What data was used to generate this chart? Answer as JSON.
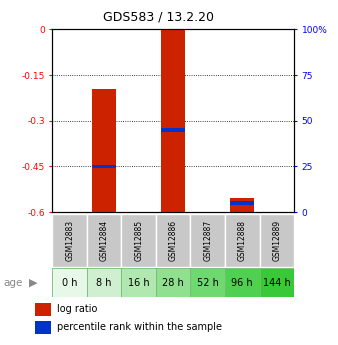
{
  "title": "GDS583 / 13.2.20",
  "samples": [
    "GSM12883",
    "GSM12884",
    "GSM12885",
    "GSM12886",
    "GSM12887",
    "GSM12888",
    "GSM12889"
  ],
  "age_labels": [
    "0 h",
    "8 h",
    "16 h",
    "28 h",
    "52 h",
    "96 h",
    "144 h"
  ],
  "ylim_left": [
    -0.6,
    0.0
  ],
  "yticks_left": [
    0.0,
    -0.15,
    -0.3,
    -0.45,
    -0.6
  ],
  "ytick_labels_left": [
    "0",
    "-0.15",
    "-0.3",
    "-0.45",
    "-0.6"
  ],
  "ylim_right": [
    0,
    100
  ],
  "yticks_right": [
    0,
    25,
    50,
    75,
    100
  ],
  "ytick_labels_right": [
    "0",
    "25",
    "50",
    "75",
    "100%"
  ],
  "log_ratio_top": [
    0.0,
    -0.195,
    0.0,
    0.0,
    0.0,
    -0.555,
    0.0
  ],
  "log_ratio_bottom": [
    0.0,
    -0.605,
    0.0,
    -0.605,
    0.0,
    -0.605,
    0.0
  ],
  "percentile_rank": [
    null,
    25,
    null,
    45,
    null,
    5,
    null
  ],
  "bar_color": "#cc2200",
  "pct_color": "#0033cc",
  "sample_box_color": "#c8c8c8",
  "age_colors": [
    "#e8f8e8",
    "#d0efd0",
    "#b0e8b0",
    "#90e090",
    "#70d870",
    "#50d050",
    "#38c838"
  ],
  "grid_color": "#555555",
  "legend_square_size": 0.008
}
